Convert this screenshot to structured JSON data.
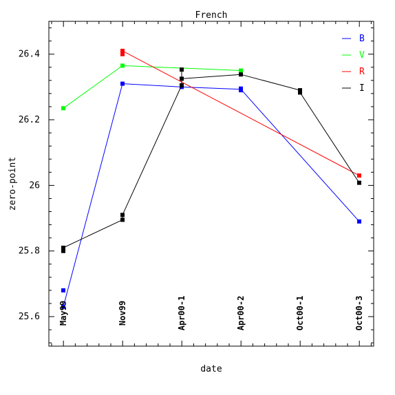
{
  "chart_data": {
    "type": "line",
    "title": "French",
    "xlabel": "date",
    "ylabel": "zero-point",
    "categories": [
      "May99",
      "Nov99",
      "Apr00-1",
      "Apr00-2",
      "Oct00-1",
      "Oct00-3"
    ],
    "ylim": [
      25.51,
      26.5
    ],
    "yticks_major": [
      25.6,
      25.8,
      26,
      26.2,
      26.4
    ],
    "yticks_major_labels": [
      "25.6",
      "25.8",
      "26",
      "26.2",
      "26.4"
    ],
    "grid": false,
    "legend_position": "top-right",
    "series": [
      {
        "name": "B",
        "color": "#0000ff",
        "line": [
          [
            0,
            25.63
          ],
          [
            1,
            26.31
          ],
          [
            2,
            26.3
          ],
          [
            3,
            26.293
          ],
          [
            5,
            25.89
          ]
        ],
        "markers": [
          [
            0,
            25.68
          ],
          [
            0,
            25.63
          ],
          [
            1,
            26.31
          ],
          [
            2,
            26.3
          ],
          [
            3,
            26.295
          ],
          [
            3,
            26.29
          ],
          [
            5,
            25.89
          ]
        ]
      },
      {
        "name": "V",
        "color": "#00ff00",
        "line": [
          [
            0,
            26.235
          ],
          [
            1,
            26.365
          ],
          [
            3,
            26.35
          ]
        ],
        "markers": [
          [
            0,
            26.235
          ],
          [
            1,
            26.365
          ],
          [
            3,
            26.35
          ]
        ]
      },
      {
        "name": "R",
        "color": "#ff0000",
        "line": [
          [
            1,
            26.41
          ],
          [
            5,
            26.03
          ]
        ],
        "markers": [
          [
            1,
            26.41
          ],
          [
            1,
            26.4
          ],
          [
            5,
            26.03
          ]
        ]
      },
      {
        "name": "I",
        "color": "#000000",
        "line": [
          [
            0,
            25.81
          ],
          [
            1,
            25.895
          ],
          [
            1,
            25.91
          ],
          [
            2,
            26.305
          ],
          [
            2,
            26.325
          ],
          [
            2,
            26.353
          ],
          [
            2,
            26.325
          ],
          [
            3,
            26.338
          ],
          [
            4,
            26.29
          ],
          [
            4,
            26.283
          ],
          [
            5,
            26.008
          ]
        ],
        "markers": [
          [
            0,
            25.81
          ],
          [
            0,
            25.8
          ],
          [
            1,
            25.895
          ],
          [
            1,
            25.91
          ],
          [
            2,
            26.305
          ],
          [
            2,
            26.325
          ],
          [
            2,
            26.353
          ],
          [
            3,
            26.338
          ],
          [
            4,
            26.29
          ],
          [
            4,
            26.283
          ],
          [
            5,
            26.008
          ]
        ]
      }
    ]
  }
}
